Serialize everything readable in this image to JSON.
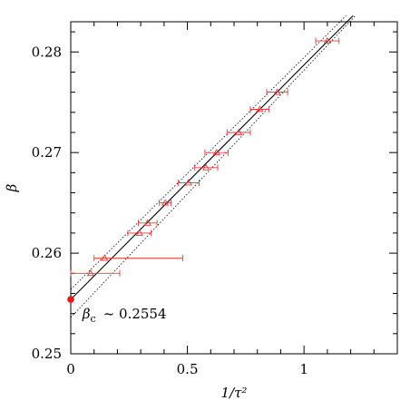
{
  "chart_data": {
    "type": "scatter",
    "xlabel": "1/τ²",
    "ylabel": "β",
    "xlim": [
      0,
      1.4
    ],
    "ylim": [
      0.25,
      0.283
    ],
    "x_ticks": [
      0,
      0.5,
      1
    ],
    "x_tick_labels": [
      "0",
      "0.5",
      "1"
    ],
    "y_ticks": [
      0.25,
      0.26,
      0.27,
      0.28
    ],
    "y_tick_labels": [
      "0.25",
      "0.26",
      "0.27",
      "0.28"
    ],
    "grid": false,
    "colors": {
      "points": "#e83a3a",
      "fit": "#000000",
      "extrapolated": "#e41a1a"
    },
    "points": [
      {
        "x": 0.085,
        "y": 0.258,
        "xerr_low": 0.085,
        "xerr_high": 0.125
      },
      {
        "x": 0.145,
        "y": 0.2595,
        "xerr_low": 0.045,
        "xerr_high": 0.335
      },
      {
        "x": 0.295,
        "y": 0.262,
        "xerr_low": 0.05,
        "xerr_high": 0.05
      },
      {
        "x": 0.33,
        "y": 0.263,
        "xerr_low": 0.04,
        "xerr_high": 0.04
      },
      {
        "x": 0.405,
        "y": 0.265,
        "xerr_low": 0.025,
        "xerr_high": 0.025
      },
      {
        "x": 0.505,
        "y": 0.267,
        "xerr_low": 0.045,
        "xerr_high": 0.045
      },
      {
        "x": 0.58,
        "y": 0.2685,
        "xerr_low": 0.05,
        "xerr_high": 0.05
      },
      {
        "x": 0.625,
        "y": 0.27,
        "xerr_low": 0.05,
        "xerr_high": 0.05
      },
      {
        "x": 0.72,
        "y": 0.272,
        "xerr_low": 0.05,
        "xerr_high": 0.05
      },
      {
        "x": 0.81,
        "y": 0.2743,
        "xerr_low": 0.04,
        "xerr_high": 0.04
      },
      {
        "x": 0.885,
        "y": 0.276,
        "xerr_low": 0.045,
        "xerr_high": 0.045
      },
      {
        "x": 1.1,
        "y": 0.2811,
        "xerr_low": 0.05,
        "xerr_high": 0.05
      }
    ],
    "fit_line": {
      "x0": 0,
      "y0": 0.2554,
      "x1": 1.21,
      "y1": 0.2836
    },
    "band_upper": {
      "x0": 0,
      "y0": 0.2564,
      "x1": 1.18,
      "y1": 0.2836
    },
    "band_lower": {
      "x0": 0,
      "y0": 0.2536,
      "x1": 1.22,
      "y1": 0.2836
    },
    "extrapolated_point": {
      "x": 0,
      "y": 0.2554
    },
    "annotation": {
      "symbol": "β",
      "subscript": "c",
      "text": "~ 0.2554",
      "x": 0.05,
      "y": 0.2535
    }
  }
}
